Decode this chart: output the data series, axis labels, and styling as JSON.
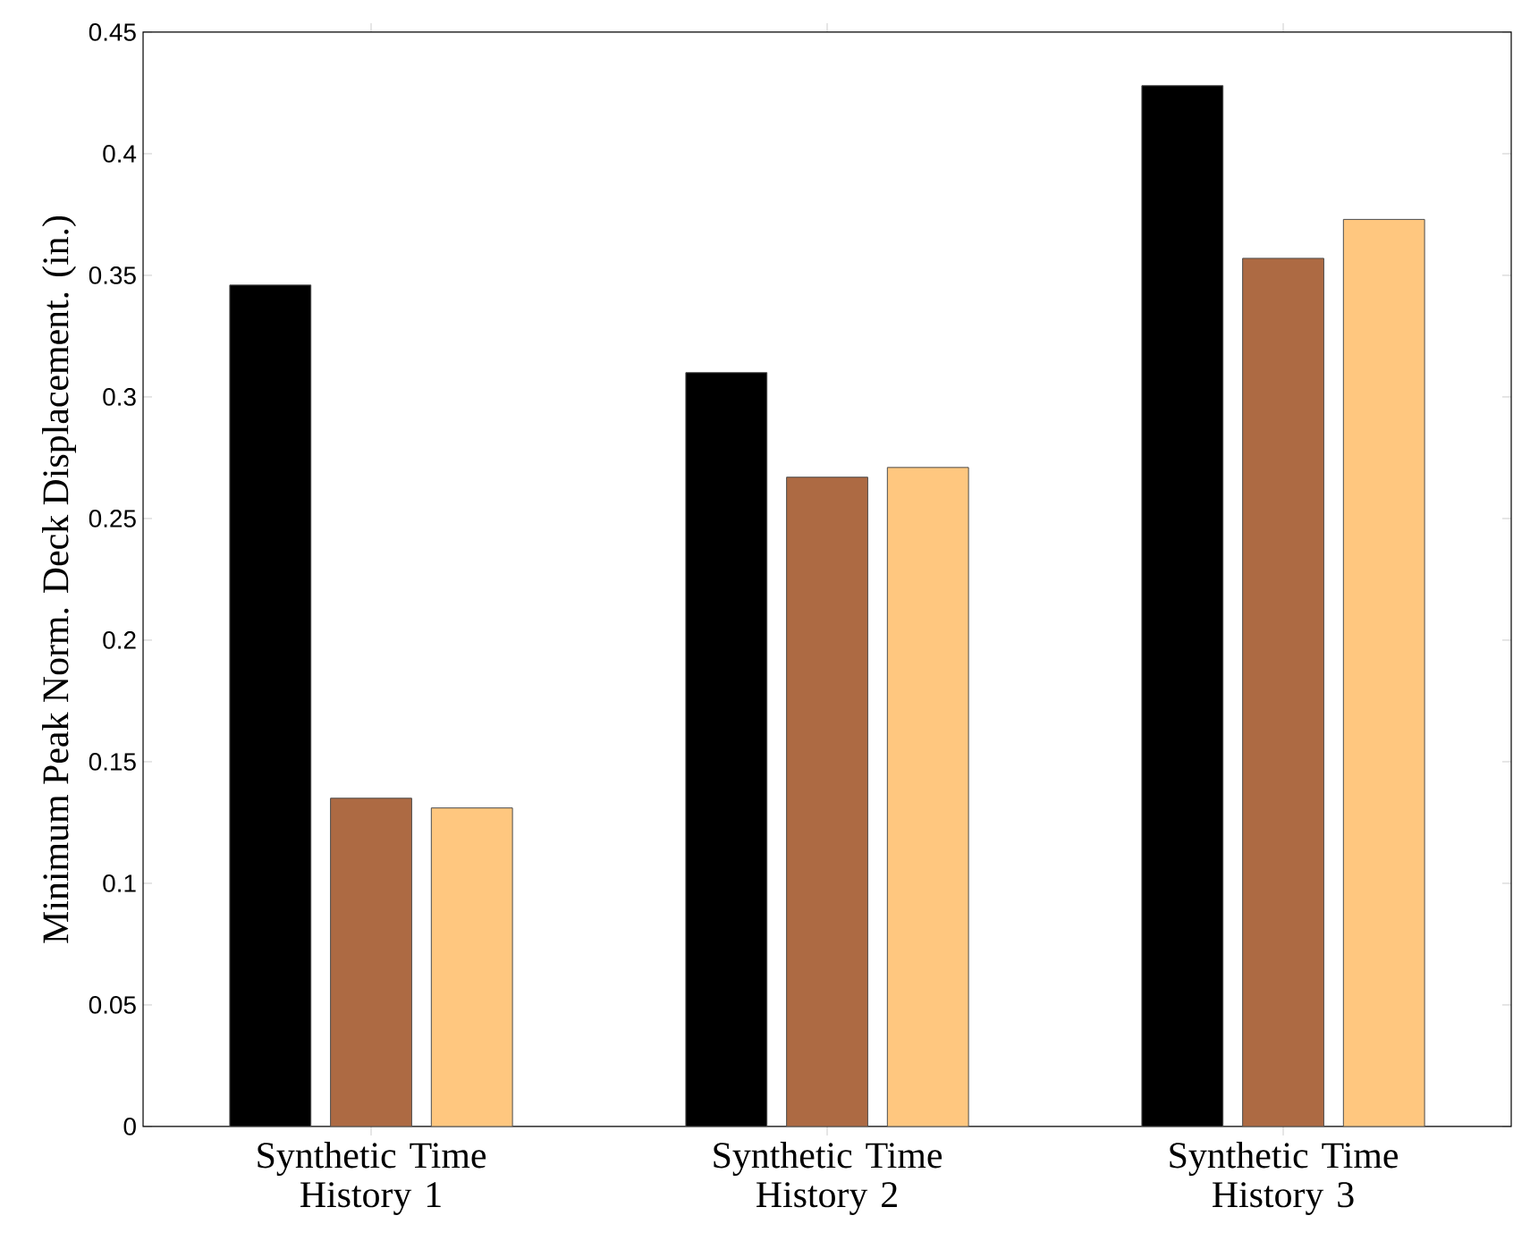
{
  "chart_data": {
    "type": "bar",
    "ylabel": "Minimum Peak Norm. Deck Displacement. (in.)",
    "categories": [
      "Synthetic Time History 1",
      "Synthetic Time History 2",
      "Synthetic Time History 3"
    ],
    "series": [
      {
        "color": "#000000",
        "values": [
          0.346,
          0.31,
          0.428
        ]
      },
      {
        "color": "#ad6a43",
        "values": [
          0.135,
          0.267,
          0.357
        ]
      },
      {
        "color": "#ffc77f",
        "values": [
          0.131,
          0.271,
          0.373
        ]
      }
    ],
    "ylim": [
      0,
      0.45
    ],
    "yticks": [
      0,
      0.05,
      0.1,
      0.15,
      0.2,
      0.25,
      0.3,
      0.35,
      0.4,
      0.45
    ],
    "grid": false
  }
}
